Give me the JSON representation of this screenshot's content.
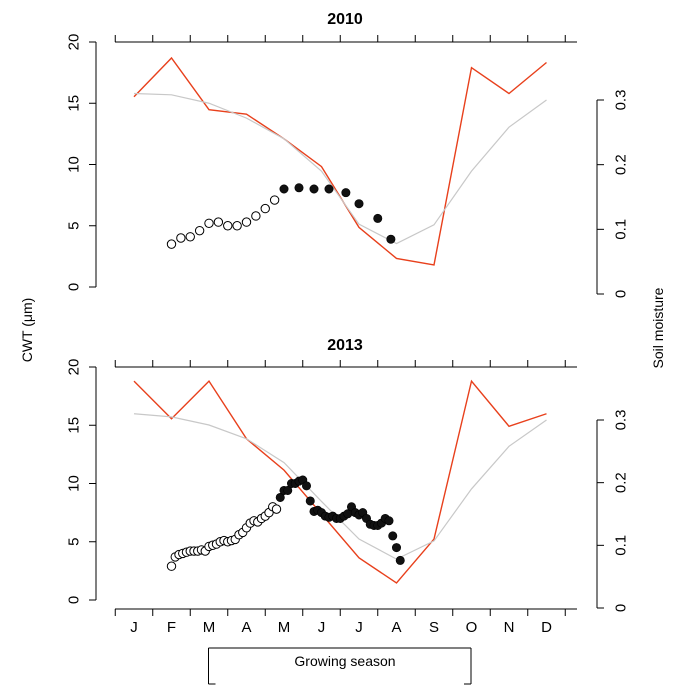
{
  "chart_data": [
    {
      "type": "line",
      "title": "2010",
      "ylabel_left": "CWT (μm)",
      "ylabel_right": "Soil moisture",
      "ylim_left": [
        0,
        20
      ],
      "yticks_left": [
        "0",
        "5",
        "10",
        "15",
        "20"
      ],
      "ylim_right": [
        0,
        0.32
      ],
      "yticks_right": [
        "0",
        "0.1",
        "0.2",
        "0.3"
      ],
      "categories": [
        "J",
        "F",
        "M",
        "A",
        "M",
        "J",
        "J",
        "A",
        "S",
        "O",
        "N",
        "D"
      ],
      "series": [
        {
          "kind": "soil-moisture-red",
          "color": "#e8401c",
          "axis": "right",
          "values": [
            0.305,
            0.365,
            0.285,
            0.278,
            0.24,
            0.197,
            0.103,
            0.055,
            0.045,
            0.35,
            0.31,
            0.358
          ]
        },
        {
          "kind": "soil-moisture-grey",
          "color": "#c8c8c8",
          "axis": "right",
          "values": [
            0.31,
            0.308,
            0.295,
            0.272,
            0.24,
            0.19,
            0.108,
            0.078,
            0.107,
            0.19,
            0.258,
            0.3
          ]
        },
        {
          "kind": "cwt-open",
          "axis": "left",
          "marker": "open-circle",
          "points": [
            [
              2.0,
              3.5
            ],
            [
              2.25,
              4.0
            ],
            [
              2.5,
              4.1
            ],
            [
              2.75,
              4.6
            ],
            [
              3.0,
              5.2
            ],
            [
              3.25,
              5.3
            ],
            [
              3.5,
              5.0
            ],
            [
              3.75,
              5.0
            ],
            [
              4.0,
              5.3
            ],
            [
              4.25,
              5.8
            ],
            [
              4.5,
              6.4
            ],
            [
              4.75,
              7.1
            ]
          ]
        },
        {
          "kind": "cwt-filled",
          "axis": "left",
          "marker": "filled-circle",
          "points": [
            [
              5.0,
              8.0
            ],
            [
              5.4,
              8.1
            ],
            [
              5.8,
              8.0
            ],
            [
              6.2,
              8.0
            ],
            [
              6.65,
              7.7
            ],
            [
              7.0,
              6.8
            ],
            [
              7.5,
              5.6
            ],
            [
              7.85,
              3.9
            ]
          ]
        }
      ]
    },
    {
      "type": "line",
      "title": "2013",
      "ylim_left": [
        0,
        20
      ],
      "yticks_left": [
        "0",
        "5",
        "10",
        "15",
        "20"
      ],
      "ylim_right": [
        0,
        0.32
      ],
      "yticks_right": [
        "0",
        "0.1",
        "0.2",
        "0.3"
      ],
      "categories": [
        "J",
        "F",
        "M",
        "A",
        "M",
        "J",
        "J",
        "A",
        "S",
        "O",
        "N",
        "D"
      ],
      "series": [
        {
          "kind": "soil-moisture-red",
          "color": "#e8401c",
          "axis": "right",
          "values": [
            0.362,
            0.302,
            0.362,
            0.27,
            0.22,
            0.15,
            0.08,
            0.04,
            0.11,
            0.362,
            0.29,
            0.31
          ]
        },
        {
          "kind": "soil-moisture-grey",
          "color": "#c8c8c8",
          "axis": "right",
          "values": [
            0.31,
            0.305,
            0.292,
            0.27,
            0.232,
            0.17,
            0.11,
            0.078,
            0.107,
            0.19,
            0.258,
            0.3
          ]
        },
        {
          "kind": "cwt-open",
          "axis": "left",
          "marker": "open-circle",
          "points": [
            [
              2.0,
              2.9
            ],
            [
              2.1,
              3.7
            ],
            [
              2.2,
              3.9
            ],
            [
              2.3,
              4.0
            ],
            [
              2.4,
              4.1
            ],
            [
              2.5,
              4.2
            ],
            [
              2.6,
              4.2
            ],
            [
              2.7,
              4.2
            ],
            [
              2.8,
              4.3
            ],
            [
              2.9,
              4.2
            ],
            [
              3.0,
              4.6
            ],
            [
              3.1,
              4.7
            ],
            [
              3.2,
              4.8
            ],
            [
              3.3,
              5.0
            ],
            [
              3.4,
              5.1
            ],
            [
              3.5,
              5.0
            ],
            [
              3.6,
              5.1
            ],
            [
              3.7,
              5.2
            ],
            [
              3.8,
              5.6
            ],
            [
              3.9,
              5.8
            ],
            [
              4.0,
              6.2
            ],
            [
              4.1,
              6.6
            ],
            [
              4.2,
              6.8
            ],
            [
              4.3,
              6.7
            ],
            [
              4.4,
              7.0
            ],
            [
              4.5,
              7.2
            ],
            [
              4.6,
              7.5
            ],
            [
              4.7,
              8.0
            ],
            [
              4.8,
              7.8
            ]
          ]
        },
        {
          "kind": "cwt-filled",
          "axis": "left",
          "marker": "filled-circle",
          "points": [
            [
              4.9,
              8.8
            ],
            [
              5.0,
              9.4
            ],
            [
              5.1,
              9.4
            ],
            [
              5.2,
              10.0
            ],
            [
              5.3,
              10.0
            ],
            [
              5.4,
              10.2
            ],
            [
              5.5,
              10.3
            ],
            [
              5.6,
              9.8
            ],
            [
              5.7,
              8.5
            ],
            [
              5.8,
              7.6
            ],
            [
              5.9,
              7.7
            ],
            [
              6.0,
              7.5
            ],
            [
              6.1,
              7.2
            ],
            [
              6.2,
              7.1
            ],
            [
              6.3,
              7.2
            ],
            [
              6.4,
              7.0
            ],
            [
              6.5,
              7.0
            ],
            [
              6.6,
              7.2
            ],
            [
              6.7,
              7.4
            ],
            [
              6.8,
              8.0
            ],
            [
              6.9,
              7.5
            ],
            [
              7.0,
              7.3
            ],
            [
              7.1,
              7.5
            ],
            [
              7.2,
              7.0
            ],
            [
              7.3,
              6.5
            ],
            [
              7.4,
              6.4
            ],
            [
              7.5,
              6.4
            ],
            [
              7.6,
              6.6
            ],
            [
              7.7,
              7.0
            ],
            [
              7.8,
              6.8
            ],
            [
              7.9,
              5.5
            ],
            [
              8.0,
              4.5
            ],
            [
              8.1,
              3.4
            ]
          ]
        }
      ]
    }
  ],
  "x_axis": {
    "labels": [
      "J",
      "F",
      "M",
      "A",
      "M",
      "J",
      "J",
      "A",
      "S",
      "O",
      "N",
      "D"
    ]
  },
  "growing_season": {
    "label": "Growing season",
    "start_month": 3,
    "end_month": 10
  }
}
